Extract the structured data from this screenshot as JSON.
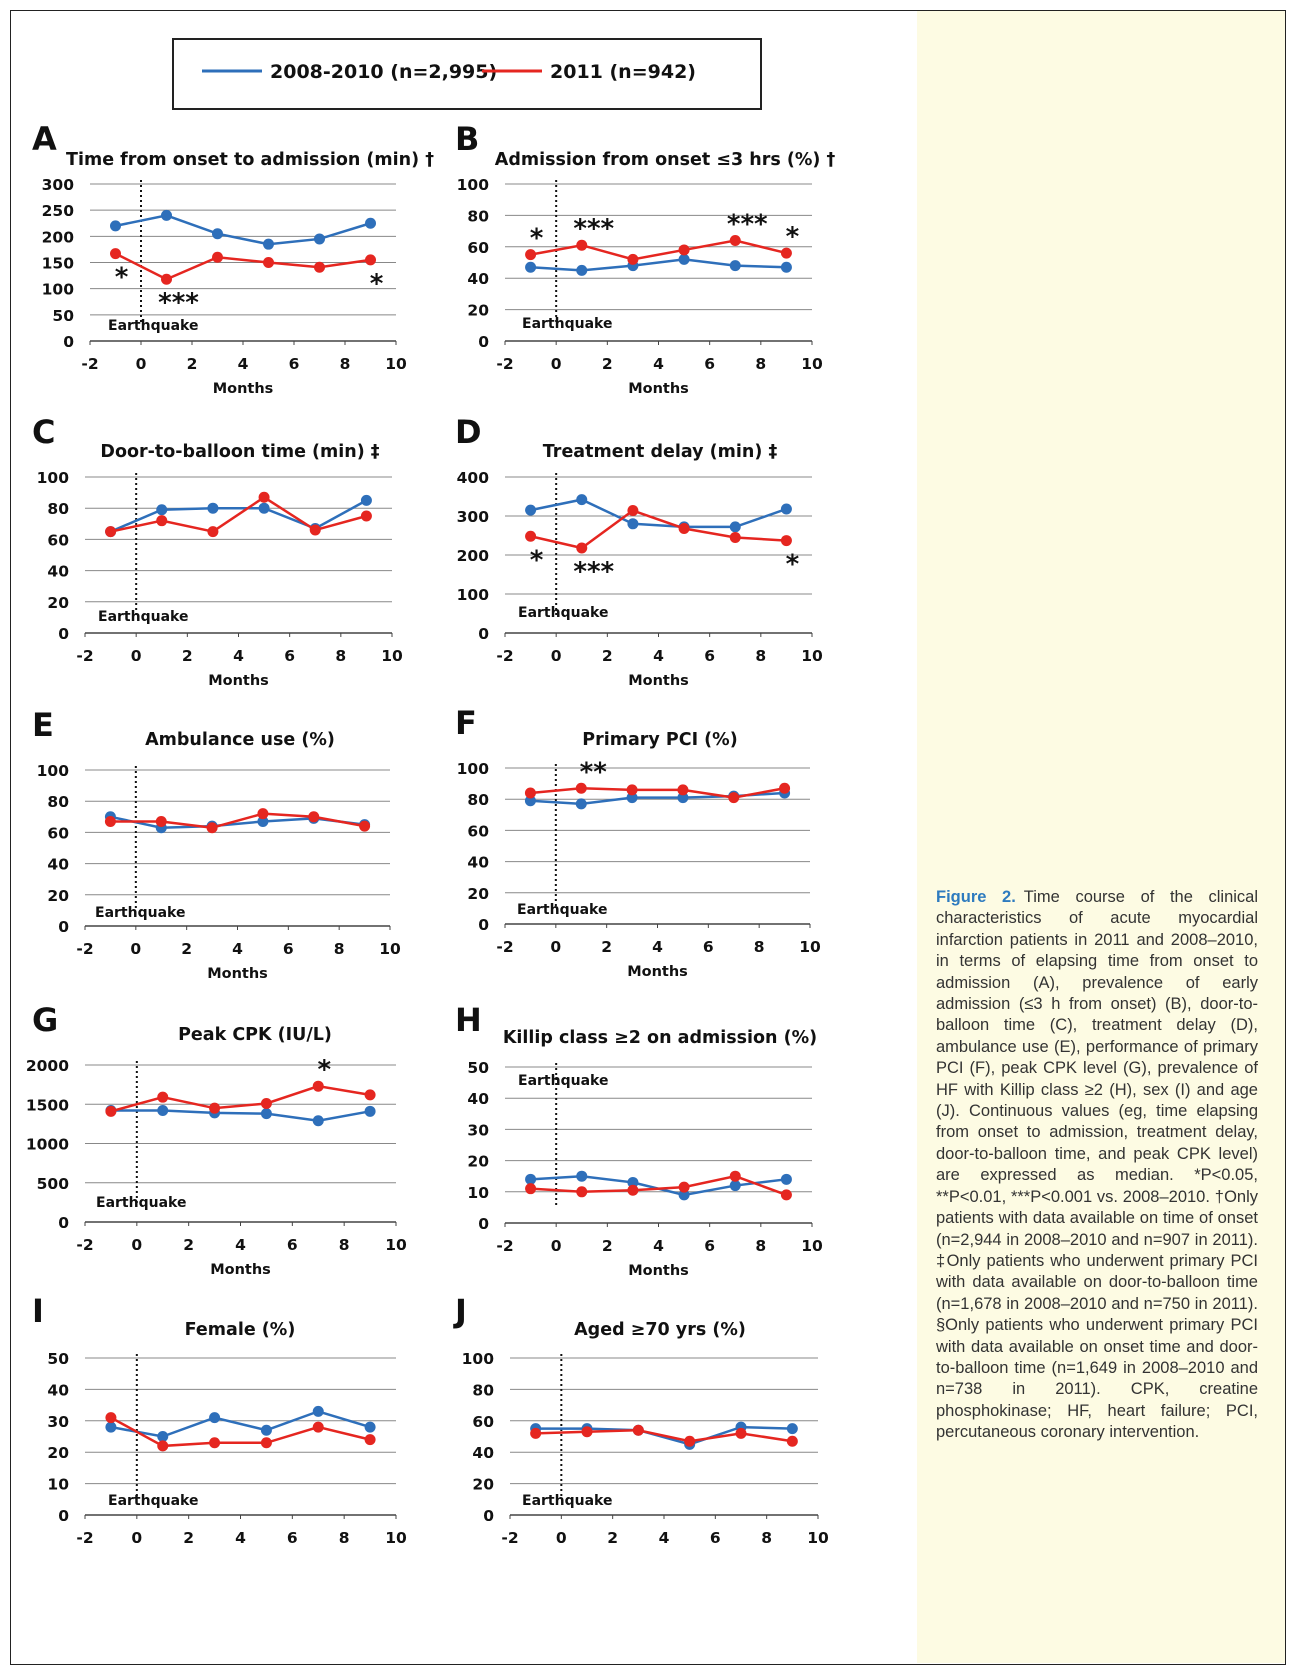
{
  "legend": {
    "series": [
      {
        "name": "2008-2010 (n=2,995)",
        "color": "#2e6fba"
      },
      {
        "name": "2011 (n=942)",
        "color": "#e52620"
      }
    ]
  },
  "annotation_label": "Earthquake",
  "colors": {
    "series_2008_2010": "#2e6fba",
    "series_2011": "#e52620",
    "caption_accent": "#2e7bbf",
    "caption_bg": "#fdfbe3"
  },
  "chart_data": [
    {
      "type": "line",
      "letter": "A",
      "title": "Time from onset to admission (min) †",
      "xlabel": "Months",
      "ylabel": "",
      "xlim": [
        -2,
        10
      ],
      "ylim": [
        0,
        300
      ],
      "xticks": [
        -2,
        0,
        2,
        4,
        6,
        8,
        10
      ],
      "yticks": [
        0,
        50,
        100,
        150,
        200,
        250,
        300
      ],
      "grid": true,
      "x": [
        -1,
        1,
        3,
        5,
        7,
        9
      ],
      "series": [
        {
          "name": "2008-2010 (n=2,995)",
          "values": [
            220,
            240,
            205,
            185,
            195,
            225
          ]
        },
        {
          "name": "2011 (n=942)",
          "values": [
            167,
            118,
            160,
            150,
            141,
            155
          ]
        }
      ],
      "significance": [
        {
          "x": -1,
          "label": "*",
          "side": "below"
        },
        {
          "x": 1,
          "label": "***",
          "side": "below"
        },
        {
          "x": 9,
          "label": "*",
          "side": "below"
        }
      ]
    },
    {
      "type": "line",
      "letter": "B",
      "title": "Admission from onset ≤3 hrs (%) †",
      "xlabel": "Months",
      "ylabel": "",
      "xlim": [
        -2,
        10
      ],
      "ylim": [
        0,
        100
      ],
      "xticks": [
        -2,
        0,
        2,
        4,
        6,
        8,
        10
      ],
      "yticks": [
        0,
        20,
        40,
        60,
        80,
        100
      ],
      "grid": true,
      "x": [
        -1,
        1,
        3,
        5,
        7,
        9
      ],
      "series": [
        {
          "name": "2008-2010 (n=2,995)",
          "values": [
            47,
            45,
            48,
            52,
            48,
            47
          ]
        },
        {
          "name": "2011 (n=942)",
          "values": [
            55,
            61,
            52,
            58,
            64,
            56
          ]
        }
      ],
      "significance": [
        {
          "x": -1,
          "label": "*",
          "side": "above"
        },
        {
          "x": 1,
          "label": "***",
          "side": "above"
        },
        {
          "x": 7,
          "label": "***",
          "side": "above"
        },
        {
          "x": 9,
          "label": "*",
          "side": "above"
        }
      ]
    },
    {
      "type": "line",
      "letter": "C",
      "title": "Door-to-balloon time (min) ‡",
      "xlabel": "Months",
      "ylabel": "",
      "xlim": [
        -2,
        10
      ],
      "ylim": [
        0,
        100
      ],
      "xticks": [
        -2,
        0,
        2,
        4,
        6,
        8,
        10
      ],
      "yticks": [
        0,
        20,
        40,
        60,
        80,
        100
      ],
      "grid": true,
      "x": [
        -1,
        1,
        3,
        5,
        7,
        9
      ],
      "series": [
        {
          "name": "2008-2010 (n=2,995)",
          "values": [
            65,
            79,
            80,
            80,
            67,
            85
          ]
        },
        {
          "name": "2011 (n=942)",
          "values": [
            65,
            72,
            65,
            87,
            66,
            75
          ]
        }
      ],
      "significance": []
    },
    {
      "type": "line",
      "letter": "D",
      "title": "Treatment delay (min) ‡",
      "xlabel": "Months",
      "ylabel": "",
      "xlim": [
        -2,
        10
      ],
      "ylim": [
        0,
        400
      ],
      "xticks": [
        -2,
        0,
        2,
        4,
        6,
        8,
        10
      ],
      "yticks": [
        0,
        100,
        200,
        300,
        400
      ],
      "grid": true,
      "x": [
        -1,
        1,
        3,
        5,
        7,
        9
      ],
      "series": [
        {
          "name": "2008-2010 (n=2,995)",
          "values": [
            315,
            342,
            280,
            272,
            272,
            318
          ]
        },
        {
          "name": "2011 (n=942)",
          "values": [
            248,
            218,
            314,
            268,
            245,
            237
          ]
        }
      ],
      "significance": [
        {
          "x": -1,
          "label": "*",
          "side": "below"
        },
        {
          "x": 1,
          "label": "***",
          "side": "below"
        },
        {
          "x": 9,
          "label": "*",
          "side": "below"
        }
      ]
    },
    {
      "type": "line",
      "letter": "E",
      "title": "Ambulance use (%)",
      "xlabel": "Months",
      "ylabel": "",
      "xlim": [
        -2,
        10
      ],
      "ylim": [
        0,
        100
      ],
      "xticks": [
        -2,
        0,
        2,
        4,
        6,
        8,
        10
      ],
      "yticks": [
        0,
        20,
        40,
        60,
        80,
        100
      ],
      "grid": true,
      "x": [
        -1,
        1,
        3,
        5,
        7,
        9
      ],
      "series": [
        {
          "name": "2008-2010 (n=2,995)",
          "values": [
            70,
            63,
            64,
            67,
            69,
            65
          ]
        },
        {
          "name": "2011 (n=942)",
          "values": [
            67,
            67,
            63,
            72,
            70,
            64
          ]
        }
      ],
      "significance": []
    },
    {
      "type": "line",
      "letter": "F",
      "title": "Primary PCI (%)",
      "xlabel": "Months",
      "ylabel": "",
      "xlim": [
        -2,
        10
      ],
      "ylim": [
        0,
        100
      ],
      "xticks": [
        -2,
        0,
        2,
        4,
        6,
        8,
        10
      ],
      "yticks": [
        0,
        20,
        40,
        60,
        80,
        100
      ],
      "grid": true,
      "x": [
        -1,
        1,
        3,
        5,
        7,
        9
      ],
      "series": [
        {
          "name": "2008-2010 (n=2,995)",
          "values": [
            79,
            77,
            81,
            81,
            82,
            84
          ]
        },
        {
          "name": "2011 (n=942)",
          "values": [
            84,
            87,
            86,
            86,
            81,
            87
          ]
        }
      ],
      "significance": [
        {
          "x": 1,
          "label": "**",
          "side": "above"
        }
      ]
    },
    {
      "type": "line",
      "letter": "G",
      "title": "Peak CPK (IU/L)",
      "xlabel": "Months",
      "ylabel": "",
      "xlim": [
        -2,
        10
      ],
      "ylim": [
        0,
        2000
      ],
      "xticks": [
        -2,
        0,
        2,
        4,
        6,
        8,
        10
      ],
      "yticks": [
        0,
        500,
        1000,
        1500,
        2000
      ],
      "grid": true,
      "x": [
        -1,
        1,
        3,
        5,
        7,
        9
      ],
      "series": [
        {
          "name": "2008-2010 (n=2,995)",
          "values": [
            1420,
            1420,
            1390,
            1380,
            1290,
            1410
          ]
        },
        {
          "name": "2011 (n=942)",
          "values": [
            1410,
            1590,
            1450,
            1510,
            1730,
            1620
          ]
        }
      ],
      "significance": [
        {
          "x": 7,
          "label": "*",
          "side": "above"
        }
      ]
    },
    {
      "type": "line",
      "letter": "H",
      "title": "Killip class ≥2 on admission (%)",
      "xlabel": "Months",
      "ylabel": "",
      "xlim": [
        -2,
        10
      ],
      "ylim": [
        0,
        50
      ],
      "xticks": [
        -2,
        0,
        2,
        4,
        6,
        8,
        10
      ],
      "yticks": [
        0,
        10,
        20,
        30,
        40,
        50
      ],
      "grid": true,
      "x": [
        -1,
        1,
        3,
        5,
        7,
        9
      ],
      "series": [
        {
          "name": "2008-2010 (n=2,995)",
          "values": [
            14,
            15,
            13,
            9,
            12,
            14
          ]
        },
        {
          "name": "2011 (n=942)",
          "values": [
            11,
            10,
            10.5,
            11.5,
            15,
            9
          ]
        }
      ],
      "significance": []
    },
    {
      "type": "line",
      "letter": "I",
      "title": "Female (%)",
      "xlabel": "",
      "ylabel": "",
      "xlim": [
        -2,
        10
      ],
      "ylim": [
        0,
        50
      ],
      "xticks": [
        -2,
        0,
        2,
        4,
        6,
        8,
        10
      ],
      "yticks": [
        0,
        10,
        20,
        30,
        40,
        50
      ],
      "grid": true,
      "x": [
        -1,
        1,
        3,
        5,
        7,
        9
      ],
      "series": [
        {
          "name": "2008-2010 (n=2,995)",
          "values": [
            28,
            25,
            31,
            27,
            33,
            28
          ]
        },
        {
          "name": "2011 (n=942)",
          "values": [
            31,
            22,
            23,
            23,
            28,
            24
          ]
        }
      ],
      "significance": []
    },
    {
      "type": "line",
      "letter": "J",
      "title": "Aged ≥70 yrs (%)",
      "xlabel": "",
      "ylabel": "",
      "xlim": [
        -2,
        10
      ],
      "ylim": [
        0,
        100
      ],
      "xticks": [
        -2,
        0,
        2,
        4,
        6,
        8,
        10
      ],
      "yticks": [
        0,
        20,
        40,
        60,
        80,
        100
      ],
      "grid": true,
      "x": [
        -1,
        1,
        3,
        5,
        7,
        9
      ],
      "series": [
        {
          "name": "2008-2010 (n=2,995)",
          "values": [
            55,
            55,
            54,
            45,
            56,
            55
          ]
        },
        {
          "name": "2011 (n=942)",
          "values": [
            52,
            53,
            54,
            47,
            52,
            47
          ]
        }
      ],
      "significance": []
    }
  ],
  "caption": {
    "figure_label": "Figure 2.",
    "text": "Time course of the clinical characteristics of acute myocardial infarction patients in 2011 and 2008–2010, in terms of elapsing time from onset to admission (A), prevalence of early admission (≤3 h from onset) (B), door-to-balloon time (C), treatment delay (D), ambulance use (E), performance of primary PCI (F), peak CPK level (G), prevalence of HF with Killip class ≥2 (H), sex (I) and age (J). Continuous values (eg, time elapsing from onset to admission, treatment delay, door-to-balloon time, and peak CPK level) are expressed as median. *P<0.05, **P<0.01, ***P<0.001 vs. 2008–2010. †Only patients with data available on time of onset (n=2,944 in 2008–2010 and n=907 in 2011). ‡Only patients who underwent primary PCI with data available on door-to-balloon time (n=1,678 in 2008–2010 and n=750 in 2011). §Only patients who underwent primary PCI with data available on onset time and door-to-balloon time (n=1,649 in 2008–2010 and n=738 in 2011). CPK, creatine phosphokinase; HF, heart failure; PCI, percutaneous coronary intervention."
  }
}
